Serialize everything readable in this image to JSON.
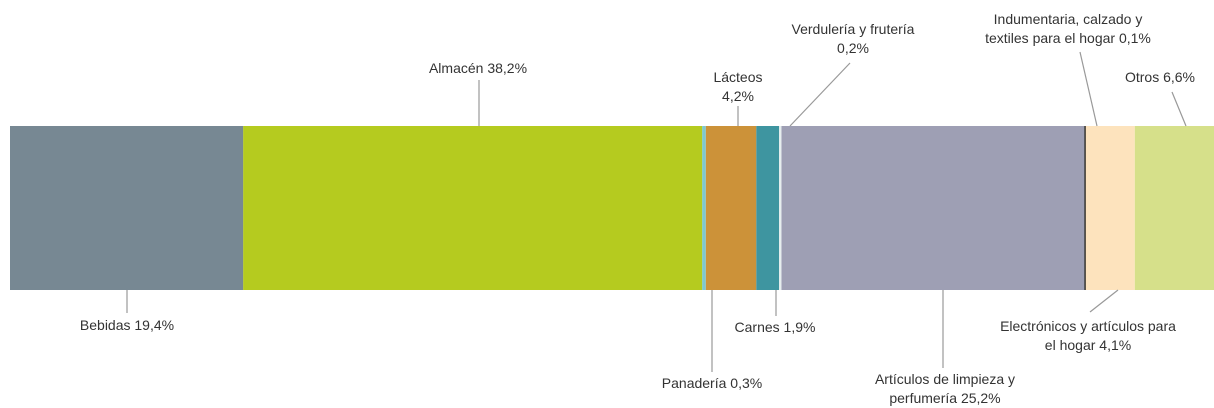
{
  "chart_data": {
    "type": "stacked-bar",
    "categories": [
      "Bebidas",
      "Almacén",
      "Panadería",
      "Lácteos",
      "Carnes",
      "Verdulería y frutería",
      "Artículos de limpieza y perfumería",
      "Indumentaria, calzado y textiles para el hogar",
      "Electrónicos y artículos para el hogar",
      "Otros"
    ],
    "values": [
      19.4,
      38.2,
      0.3,
      4.2,
      1.9,
      0.2,
      25.2,
      0.1,
      4.1,
      6.6
    ],
    "value_labels": [
      "19,4%",
      "38,2%",
      "0,3%",
      "4,2%",
      "1,9%",
      "0,2%",
      "25,2%",
      "0,1%",
      "4,1%",
      "6,6%"
    ],
    "colors": [
      "#778893",
      "#b5cb1f",
      "#7ec8d0",
      "#cc9239",
      "#3e95a0",
      "#e6eeee",
      "#9e9fb4",
      "#1e1e1e",
      "#fde3bd",
      "#d6e08a"
    ]
  }
}
